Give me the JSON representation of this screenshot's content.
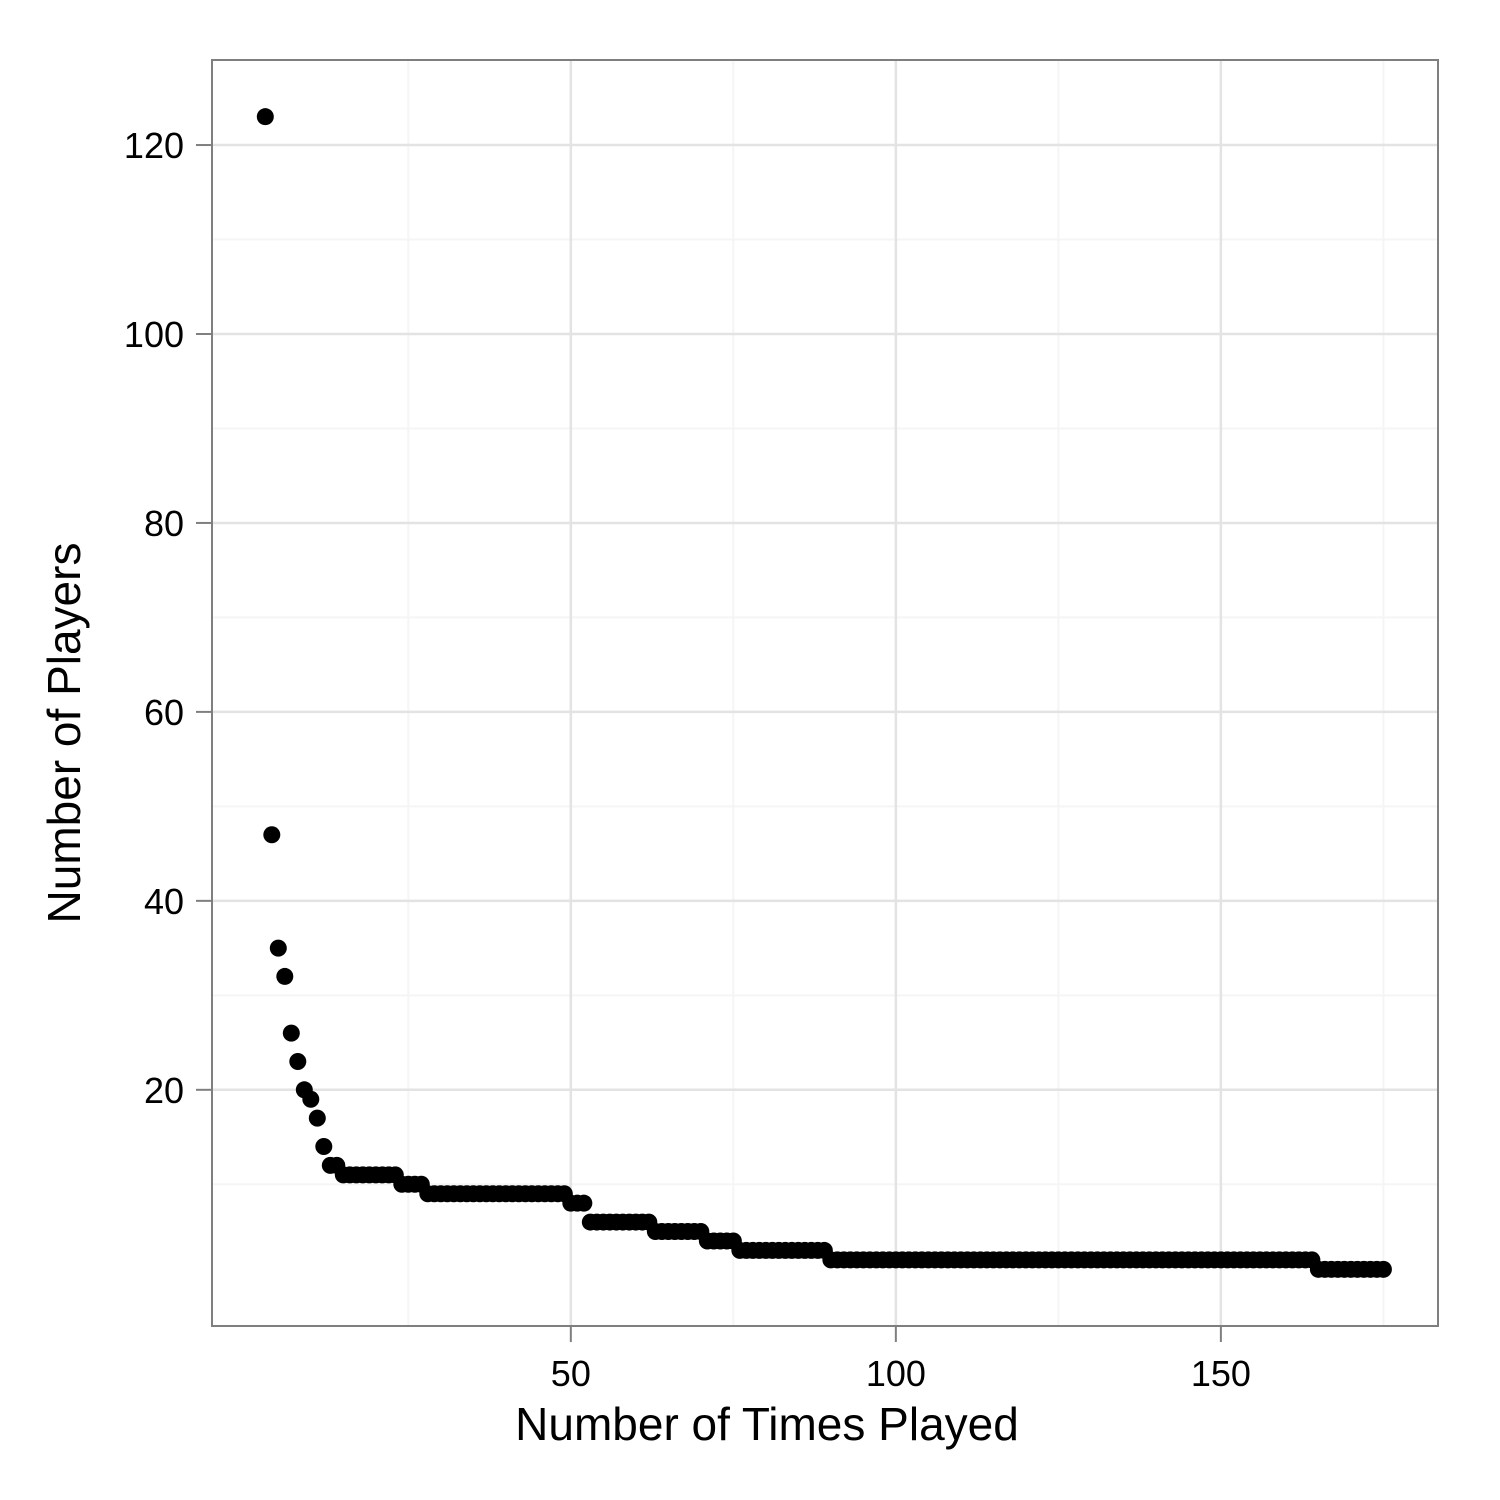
{
  "chart_data": {
    "type": "scatter",
    "x_label": "Number of Times Played",
    "y_label": "Number of Players",
    "x": [
      3,
      4,
      5,
      6,
      7,
      8,
      9,
      10,
      11,
      12,
      13,
      14,
      15,
      16,
      17,
      18,
      19,
      20,
      21,
      22,
      23,
      24,
      25,
      26,
      27,
      28,
      29,
      30,
      31,
      32,
      33,
      34,
      35,
      36,
      37,
      38,
      39,
      40,
      41,
      42,
      43,
      44,
      45,
      46,
      47,
      48,
      49,
      50,
      51,
      52,
      53,
      54,
      55,
      56,
      57,
      58,
      59,
      60,
      61,
      62,
      63,
      64,
      65,
      66,
      67,
      68,
      69,
      70,
      71,
      72,
      73,
      74,
      75,
      76,
      77,
      78,
      79,
      80,
      81,
      82,
      83,
      84,
      85,
      86,
      87,
      88,
      89,
      90,
      91,
      92,
      93,
      94,
      95,
      96,
      97,
      98,
      99,
      100,
      101,
      102,
      103,
      104,
      105,
      106,
      107,
      108,
      109,
      110,
      111,
      112,
      113,
      114,
      115,
      116,
      117,
      118,
      119,
      120,
      121,
      122,
      123,
      124,
      125,
      126,
      127,
      128,
      129,
      130,
      131,
      132,
      133,
      134,
      135,
      136,
      137,
      138,
      139,
      140,
      141,
      142,
      143,
      144,
      145,
      146,
      147,
      148,
      149,
      150,
      151,
      152,
      153,
      154,
      155,
      156,
      157,
      158,
      159,
      160,
      161,
      162,
      163,
      164,
      165,
      166,
      167,
      168,
      169,
      170,
      171,
      172,
      173,
      174,
      175
    ],
    "values": [
      123,
      47,
      35,
      32,
      26,
      23,
      20,
      19,
      17,
      14,
      12,
      12,
      11,
      11,
      11,
      11,
      11,
      11,
      11,
      11,
      11,
      10,
      10,
      10,
      10,
      9,
      9,
      9,
      9,
      9,
      9,
      9,
      9,
      9,
      9,
      9,
      9,
      9,
      9,
      9,
      9,
      9,
      9,
      9,
      9,
      9,
      9,
      8,
      8,
      8,
      6,
      6,
      6,
      6,
      6,
      6,
      6,
      6,
      6,
      6,
      5,
      5,
      5,
      5,
      5,
      5,
      5,
      5,
      4,
      4,
      4,
      4,
      4,
      3,
      3,
      3,
      3,
      3,
      3,
      3,
      3,
      3,
      3,
      3,
      3,
      3,
      3,
      2,
      2,
      2,
      2,
      2,
      2,
      2,
      2,
      2,
      2,
      2,
      2,
      2,
      2,
      2,
      2,
      2,
      2,
      2,
      2,
      2,
      2,
      2,
      2,
      2,
      2,
      2,
      2,
      2,
      2,
      2,
      2,
      2,
      2,
      2,
      2,
      2,
      2,
      2,
      2,
      2,
      2,
      2,
      2,
      2,
      2,
      2,
      2,
      2,
      2,
      2,
      2,
      2,
      2,
      2,
      2,
      2,
      2,
      2,
      2,
      2,
      2,
      2,
      2,
      2,
      2,
      2,
      2,
      2,
      2,
      2,
      2,
      2,
      2,
      2,
      1,
      1,
      1,
      1,
      1,
      1,
      1,
      1,
      1,
      1,
      1
    ],
    "color": "#000000",
    "xlim": [
      -5.2,
      183.4
    ],
    "ylim": [
      -5,
      129
    ],
    "xticks": [
      50,
      100,
      150
    ],
    "yticks": [
      20,
      40,
      60,
      80,
      100,
      120
    ],
    "grid": true
  }
}
